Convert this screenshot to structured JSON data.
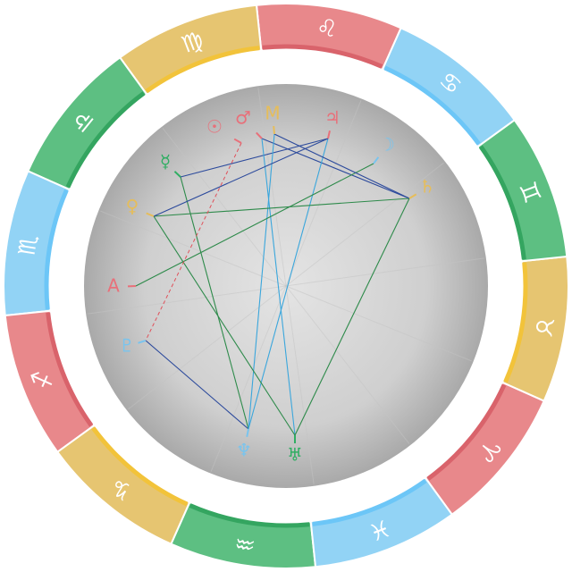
{
  "zodiac": [
    "♈",
    "♉",
    "♊",
    "♋",
    "♌",
    "♍",
    "♎",
    "♏",
    "♐",
    "♑",
    "♒",
    "♓"
  ],
  "planets": [
    "☉",
    "♂",
    "M",
    "♃",
    "☽",
    "♄",
    "☿",
    "♀",
    "A",
    "♇",
    "♆",
    "♅"
  ]
}
